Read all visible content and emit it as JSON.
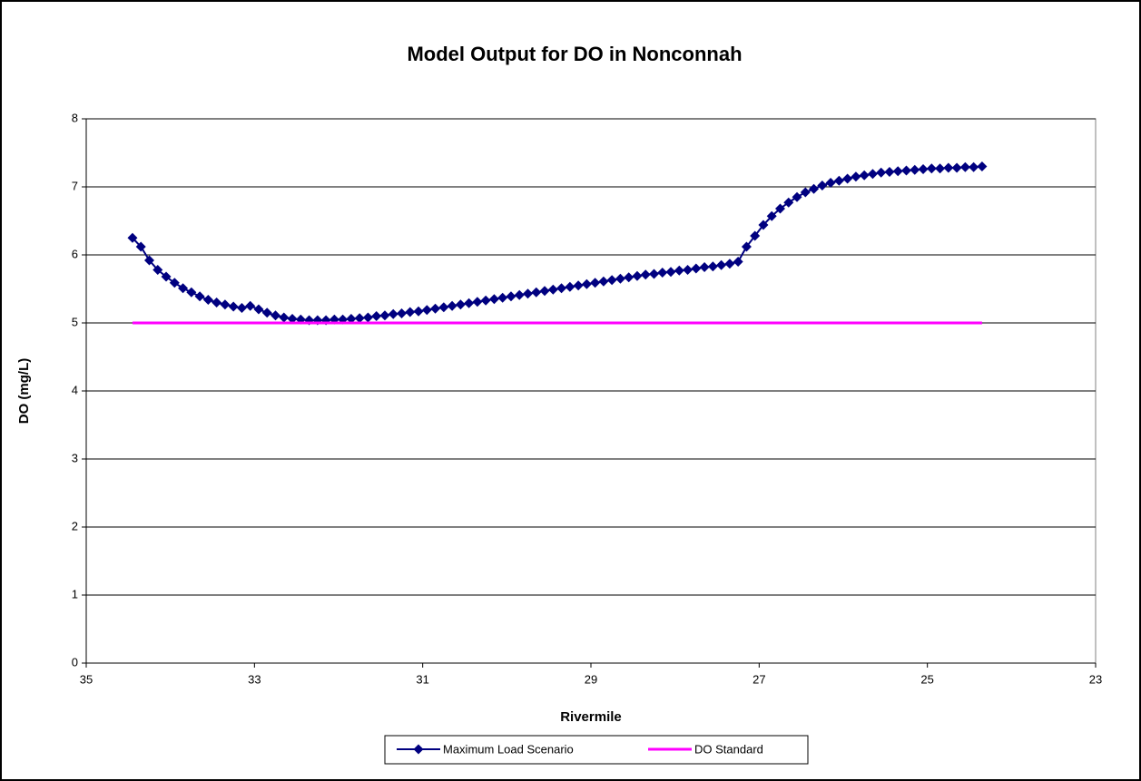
{
  "chart_data": {
    "type": "line",
    "title": "Model Output for DO in Nonconnah",
    "x_label": "Rivermile",
    "y_label": "DO (mg/L)",
    "xlim": [
      35,
      23
    ],
    "xticks": [
      35,
      33,
      31,
      29,
      27,
      25,
      23
    ],
    "ylim": [
      0,
      8
    ],
    "yticks": [
      0,
      1,
      2,
      3,
      4,
      5,
      6,
      7,
      8
    ],
    "grid": true,
    "legend": "bottom",
    "series": [
      {
        "name": "Maximum Load Scenario",
        "color": "#000080",
        "marker": "diamond",
        "x": [
          34.45,
          34.35,
          34.25,
          34.15,
          34.05,
          33.95,
          33.85,
          33.75,
          33.65,
          33.55,
          33.45,
          33.35,
          33.25,
          33.15,
          33.05,
          32.95,
          32.85,
          32.75,
          32.65,
          32.55,
          32.45,
          32.35,
          32.25,
          32.15,
          32.05,
          31.95,
          31.85,
          31.75,
          31.65,
          31.55,
          31.45,
          31.35,
          31.25,
          31.15,
          31.05,
          30.95,
          30.85,
          30.75,
          30.65,
          30.55,
          30.45,
          30.35,
          30.25,
          30.15,
          30.05,
          29.95,
          29.85,
          29.75,
          29.65,
          29.55,
          29.45,
          29.35,
          29.25,
          29.15,
          29.05,
          28.95,
          28.85,
          28.75,
          28.65,
          28.55,
          28.45,
          28.35,
          28.25,
          28.15,
          28.05,
          27.95,
          27.85,
          27.75,
          27.65,
          27.55,
          27.45,
          27.35,
          27.25,
          27.15,
          27.05,
          26.95,
          26.85,
          26.75,
          26.65,
          26.55,
          26.45,
          26.35,
          26.25,
          26.15,
          26.05,
          25.95,
          25.85,
          25.75,
          25.65,
          25.55,
          25.45,
          25.35,
          25.25,
          25.15,
          25.05,
          24.95,
          24.85,
          24.75,
          24.65,
          24.55,
          24.45,
          24.35
        ],
        "values": [
          6.25,
          6.12,
          5.92,
          5.78,
          5.68,
          5.59,
          5.51,
          5.45,
          5.39,
          5.34,
          5.3,
          5.27,
          5.24,
          5.22,
          5.25,
          5.2,
          5.15,
          5.11,
          5.08,
          5.06,
          5.05,
          5.04,
          5.04,
          5.04,
          5.05,
          5.05,
          5.06,
          5.07,
          5.08,
          5.1,
          5.11,
          5.13,
          5.14,
          5.16,
          5.17,
          5.19,
          5.21,
          5.23,
          5.25,
          5.27,
          5.29,
          5.31,
          5.33,
          5.35,
          5.37,
          5.39,
          5.41,
          5.43,
          5.45,
          5.47,
          5.49,
          5.51,
          5.53,
          5.55,
          5.57,
          5.59,
          5.61,
          5.63,
          5.65,
          5.67,
          5.69,
          5.71,
          5.72,
          5.74,
          5.75,
          5.77,
          5.78,
          5.8,
          5.82,
          5.83,
          5.85,
          5.87,
          5.9,
          6.12,
          6.28,
          6.44,
          6.57,
          6.68,
          6.77,
          6.85,
          6.92,
          6.97,
          7.02,
          7.06,
          7.09,
          7.12,
          7.15,
          7.17,
          7.19,
          7.21,
          7.22,
          7.23,
          7.24,
          7.25,
          7.26,
          7.27,
          7.27,
          7.28,
          7.28,
          7.29,
          7.29,
          7.3
        ]
      },
      {
        "name": "DO Standard",
        "color": "#ff00ff",
        "marker": "none",
        "x": [
          34.45,
          24.35
        ],
        "values": [
          5,
          5
        ]
      }
    ]
  }
}
